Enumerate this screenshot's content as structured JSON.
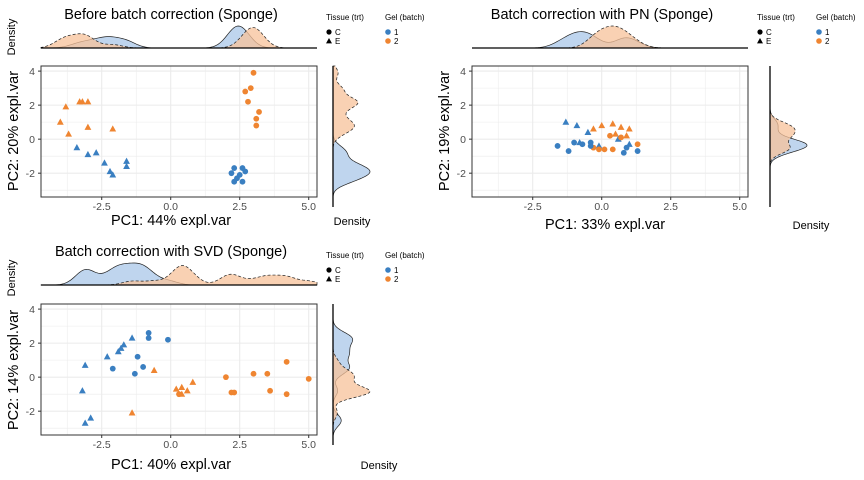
{
  "colors": {
    "batch_1": "#3a7fc1",
    "batch_2": "#ef8531",
    "batch_1_fill": "#a9c7e8",
    "batch_2_fill": "#f7c29a",
    "grid": "#ebebeb",
    "axis_text": "#4d4d4d"
  },
  "legend": {
    "tissue_title": "Tissue (trt)",
    "tissue_items": [
      {
        "label": "C",
        "shape": "circle"
      },
      {
        "label": "E",
        "shape": "triangle"
      }
    ],
    "gel_title": "Gel (batch)",
    "gel_items": [
      {
        "label": "1",
        "color": "#3a7fc1"
      },
      {
        "label": "2",
        "color": "#ef8531"
      }
    ]
  },
  "chart_data": [
    {
      "type": "scatter",
      "title": "Before batch correction (Sponge)",
      "xlabel": "PC1: 44% expl.var",
      "ylabel": "PC2: 20% expl.var",
      "top_density_label": "Density",
      "right_density_label": "Density",
      "xlim": [
        -4.7,
        5.3
      ],
      "ylim": [
        -3.4,
        4.3
      ],
      "xticks": [
        {
          "v": -2.5,
          "label": "-2.5"
        },
        {
          "v": 0,
          "label": "0.0"
        },
        {
          "v": 2.5,
          "label": "2.5"
        },
        {
          "v": 5,
          "label": "5.0"
        }
      ],
      "yticks": [
        {
          "v": -2,
          "label": "-2"
        },
        {
          "v": 0,
          "label": "0"
        },
        {
          "v": 2,
          "label": "2"
        },
        {
          "v": 4,
          "label": "4"
        }
      ],
      "grid": true,
      "points": [
        {
          "x": -3.3,
          "y": 2.2,
          "shape": "triangle",
          "batch": 2
        },
        {
          "x": -3.0,
          "y": 2.2,
          "shape": "triangle",
          "batch": 2
        },
        {
          "x": -3.2,
          "y": 2.2,
          "shape": "triangle",
          "batch": 2
        },
        {
          "x": -3.8,
          "y": 1.9,
          "shape": "triangle",
          "batch": 2
        },
        {
          "x": -4.0,
          "y": 1.0,
          "shape": "triangle",
          "batch": 2
        },
        {
          "x": -3.0,
          "y": 0.7,
          "shape": "triangle",
          "batch": 2
        },
        {
          "x": -2.1,
          "y": 0.6,
          "shape": "triangle",
          "batch": 2
        },
        {
          "x": -3.7,
          "y": 0.3,
          "shape": "triangle",
          "batch": 2
        },
        {
          "x": -3.4,
          "y": -0.5,
          "shape": "triangle",
          "batch": 1
        },
        {
          "x": -3.0,
          "y": -0.9,
          "shape": "triangle",
          "batch": 1
        },
        {
          "x": -2.7,
          "y": -0.8,
          "shape": "triangle",
          "batch": 1
        },
        {
          "x": -2.4,
          "y": -1.4,
          "shape": "triangle",
          "batch": 1
        },
        {
          "x": -2.2,
          "y": -1.9,
          "shape": "triangle",
          "batch": 1
        },
        {
          "x": -2.1,
          "y": -2.1,
          "shape": "triangle",
          "batch": 1
        },
        {
          "x": -1.6,
          "y": -1.3,
          "shape": "triangle",
          "batch": 1
        },
        {
          "x": -1.6,
          "y": -1.6,
          "shape": "triangle",
          "batch": 1
        },
        {
          "x": 3.0,
          "y": 3.9,
          "shape": "circle",
          "batch": 2
        },
        {
          "x": 2.9,
          "y": 3.0,
          "shape": "circle",
          "batch": 2
        },
        {
          "x": 2.7,
          "y": 2.8,
          "shape": "circle",
          "batch": 2
        },
        {
          "x": 2.8,
          "y": 2.2,
          "shape": "circle",
          "batch": 2
        },
        {
          "x": 3.2,
          "y": 1.6,
          "shape": "circle",
          "batch": 2
        },
        {
          "x": 3.1,
          "y": 1.2,
          "shape": "circle",
          "batch": 2
        },
        {
          "x": 3.1,
          "y": 0.8,
          "shape": "circle",
          "batch": 2
        },
        {
          "x": 2.3,
          "y": -1.7,
          "shape": "circle",
          "batch": 1
        },
        {
          "x": 2.6,
          "y": -1.7,
          "shape": "circle",
          "batch": 1
        },
        {
          "x": 2.7,
          "y": -1.9,
          "shape": "circle",
          "batch": 1
        },
        {
          "x": 2.2,
          "y": -2.0,
          "shape": "circle",
          "batch": 1
        },
        {
          "x": 2.5,
          "y": -2.1,
          "shape": "circle",
          "batch": 1
        },
        {
          "x": 2.4,
          "y": -2.3,
          "shape": "circle",
          "batch": 1
        },
        {
          "x": 2.6,
          "y": -2.5,
          "shape": "circle",
          "batch": 1
        },
        {
          "x": 2.3,
          "y": -2.5,
          "shape": "circle",
          "batch": 1
        }
      ]
    },
    {
      "type": "scatter",
      "title": "Batch correction with PN (Sponge)",
      "xlabel": "PC1: 33% expl.var",
      "ylabel": "PC2: 19% expl.var",
      "top_density_label": "",
      "right_density_label": "Density",
      "xlim": [
        -4.7,
        5.3
      ],
      "ylim": [
        -3.4,
        4.3
      ],
      "xticks": [
        {
          "v": -2.5,
          "label": "-2.5"
        },
        {
          "v": 0,
          "label": "0.0"
        },
        {
          "v": 2.5,
          "label": "2.5"
        },
        {
          "v": 5,
          "label": "5.0"
        }
      ],
      "yticks": [
        {
          "v": -2,
          "label": "-2"
        },
        {
          "v": 0,
          "label": "0"
        },
        {
          "v": 2,
          "label": "2"
        },
        {
          "v": 4,
          "label": "4"
        }
      ],
      "grid": true,
      "points": [
        {
          "x": -1.3,
          "y": 1.0,
          "shape": "triangle",
          "batch": 1
        },
        {
          "x": -0.9,
          "y": 0.8,
          "shape": "triangle",
          "batch": 1
        },
        {
          "x": -0.5,
          "y": 0.4,
          "shape": "triangle",
          "batch": 1
        },
        {
          "x": -0.3,
          "y": 0.6,
          "shape": "triangle",
          "batch": 2
        },
        {
          "x": 0.0,
          "y": 0.8,
          "shape": "triangle",
          "batch": 2
        },
        {
          "x": 0.4,
          "y": 0.9,
          "shape": "triangle",
          "batch": 2
        },
        {
          "x": 0.7,
          "y": 0.7,
          "shape": "triangle",
          "batch": 2
        },
        {
          "x": 0.5,
          "y": 0.3,
          "shape": "triangle",
          "batch": 2
        },
        {
          "x": 0.9,
          "y": 0.2,
          "shape": "triangle",
          "batch": 2
        },
        {
          "x": 1.0,
          "y": 0.6,
          "shape": "triangle",
          "batch": 2
        },
        {
          "x": 1.0,
          "y": -0.3,
          "shape": "triangle",
          "batch": 1
        },
        {
          "x": 0.6,
          "y": 0.0,
          "shape": "triangle",
          "batch": 1
        },
        {
          "x": -0.1,
          "y": -0.4,
          "shape": "triangle",
          "batch": 1
        },
        {
          "x": -0.8,
          "y": -0.2,
          "shape": "triangle",
          "batch": 1
        },
        {
          "x": 0.3,
          "y": 0.2,
          "shape": "circle",
          "batch": 2
        },
        {
          "x": 0.7,
          "y": 0.1,
          "shape": "circle",
          "batch": 2
        },
        {
          "x": 1.3,
          "y": -0.3,
          "shape": "circle",
          "batch": 2
        },
        {
          "x": 0.4,
          "y": -0.6,
          "shape": "circle",
          "batch": 2
        },
        {
          "x": 0.1,
          "y": -0.6,
          "shape": "circle",
          "batch": 2
        },
        {
          "x": -0.3,
          "y": -0.5,
          "shape": "circle",
          "batch": 2
        },
        {
          "x": -0.1,
          "y": -0.6,
          "shape": "circle",
          "batch": 2
        },
        {
          "x": -0.4,
          "y": -0.4,
          "shape": "circle",
          "batch": 1
        },
        {
          "x": -0.7,
          "y": -0.3,
          "shape": "circle",
          "batch": 1
        },
        {
          "x": -1.0,
          "y": -0.2,
          "shape": "circle",
          "batch": 1
        },
        {
          "x": -1.2,
          "y": -0.7,
          "shape": "circle",
          "batch": 1
        },
        {
          "x": -1.6,
          "y": -0.4,
          "shape": "circle",
          "batch": 1
        },
        {
          "x": -0.4,
          "y": -0.2,
          "shape": "circle",
          "batch": 1
        },
        {
          "x": 0.9,
          "y": -0.5,
          "shape": "circle",
          "batch": 1
        },
        {
          "x": 0.8,
          "y": -0.8,
          "shape": "circle",
          "batch": 1
        },
        {
          "x": 1.3,
          "y": -0.7,
          "shape": "circle",
          "batch": 1
        }
      ]
    },
    {
      "type": "scatter",
      "title": "Batch correction with SVD (Sponge)",
      "xlabel": "PC1: 40% expl.var",
      "ylabel": "PC2: 14% expl.var",
      "top_density_label": "Density",
      "right_density_label": "Density",
      "xlim": [
        -4.7,
        5.3
      ],
      "ylim": [
        -3.4,
        4.3
      ],
      "xticks": [
        {
          "v": -2.5,
          "label": "-2.5"
        },
        {
          "v": 0,
          "label": "0.0"
        },
        {
          "v": 2.5,
          "label": "2.5"
        },
        {
          "v": 5,
          "label": "5.0"
        }
      ],
      "yticks": [
        {
          "v": -2,
          "label": "-2"
        },
        {
          "v": 0,
          "label": "0"
        },
        {
          "v": 2,
          "label": "2"
        },
        {
          "v": 4,
          "label": "4"
        }
      ],
      "grid": true,
      "points": [
        {
          "x": -0.8,
          "y": 2.6,
          "shape": "circle",
          "batch": 1
        },
        {
          "x": -0.8,
          "y": 2.3,
          "shape": "circle",
          "batch": 1
        },
        {
          "x": -0.1,
          "y": 2.2,
          "shape": "circle",
          "batch": 1
        },
        {
          "x": -1.4,
          "y": 2.3,
          "shape": "triangle",
          "batch": 1
        },
        {
          "x": -1.7,
          "y": 1.9,
          "shape": "triangle",
          "batch": 1
        },
        {
          "x": -1.8,
          "y": 1.7,
          "shape": "triangle",
          "batch": 1
        },
        {
          "x": -1.9,
          "y": 1.5,
          "shape": "triangle",
          "batch": 1
        },
        {
          "x": -2.3,
          "y": 1.2,
          "shape": "triangle",
          "batch": 1
        },
        {
          "x": -3.1,
          "y": 0.7,
          "shape": "triangle",
          "batch": 1
        },
        {
          "x": -1.2,
          "y": 1.2,
          "shape": "circle",
          "batch": 1
        },
        {
          "x": -1.0,
          "y": 0.6,
          "shape": "circle",
          "batch": 1
        },
        {
          "x": -2.1,
          "y": 0.5,
          "shape": "circle",
          "batch": 1
        },
        {
          "x": -1.3,
          "y": 0.2,
          "shape": "circle",
          "batch": 1
        },
        {
          "x": -0.6,
          "y": 0.4,
          "shape": "triangle",
          "batch": 2
        },
        {
          "x": -3.2,
          "y": -0.8,
          "shape": "triangle",
          "batch": 1
        },
        {
          "x": -2.9,
          "y": -2.4,
          "shape": "triangle",
          "batch": 1
        },
        {
          "x": -3.1,
          "y": -2.7,
          "shape": "triangle",
          "batch": 1
        },
        {
          "x": -1.4,
          "y": -2.1,
          "shape": "triangle",
          "batch": 2
        },
        {
          "x": 0.2,
          "y": -0.7,
          "shape": "triangle",
          "batch": 2
        },
        {
          "x": 0.4,
          "y": -0.6,
          "shape": "triangle",
          "batch": 2
        },
        {
          "x": 0.8,
          "y": -0.3,
          "shape": "triangle",
          "batch": 2
        },
        {
          "x": 0.4,
          "y": -1.0,
          "shape": "triangle",
          "batch": 2
        },
        {
          "x": 0.6,
          "y": -0.8,
          "shape": "triangle",
          "batch": 2
        },
        {
          "x": 0.3,
          "y": -1.0,
          "shape": "circle",
          "batch": 2
        },
        {
          "x": 2.0,
          "y": 0.0,
          "shape": "circle",
          "batch": 2
        },
        {
          "x": 2.2,
          "y": -0.9,
          "shape": "circle",
          "batch": 2
        },
        {
          "x": 2.3,
          "y": -0.9,
          "shape": "circle",
          "batch": 2
        },
        {
          "x": 3.0,
          "y": 0.2,
          "shape": "circle",
          "batch": 2
        },
        {
          "x": 3.5,
          "y": 0.2,
          "shape": "circle",
          "batch": 2
        },
        {
          "x": 4.2,
          "y": 0.9,
          "shape": "circle",
          "batch": 2
        },
        {
          "x": 3.6,
          "y": -0.8,
          "shape": "circle",
          "batch": 2
        },
        {
          "x": 4.2,
          "y": -1.0,
          "shape": "circle",
          "batch": 2
        },
        {
          "x": 5.0,
          "y": -0.1,
          "shape": "circle",
          "batch": 2
        }
      ]
    }
  ]
}
